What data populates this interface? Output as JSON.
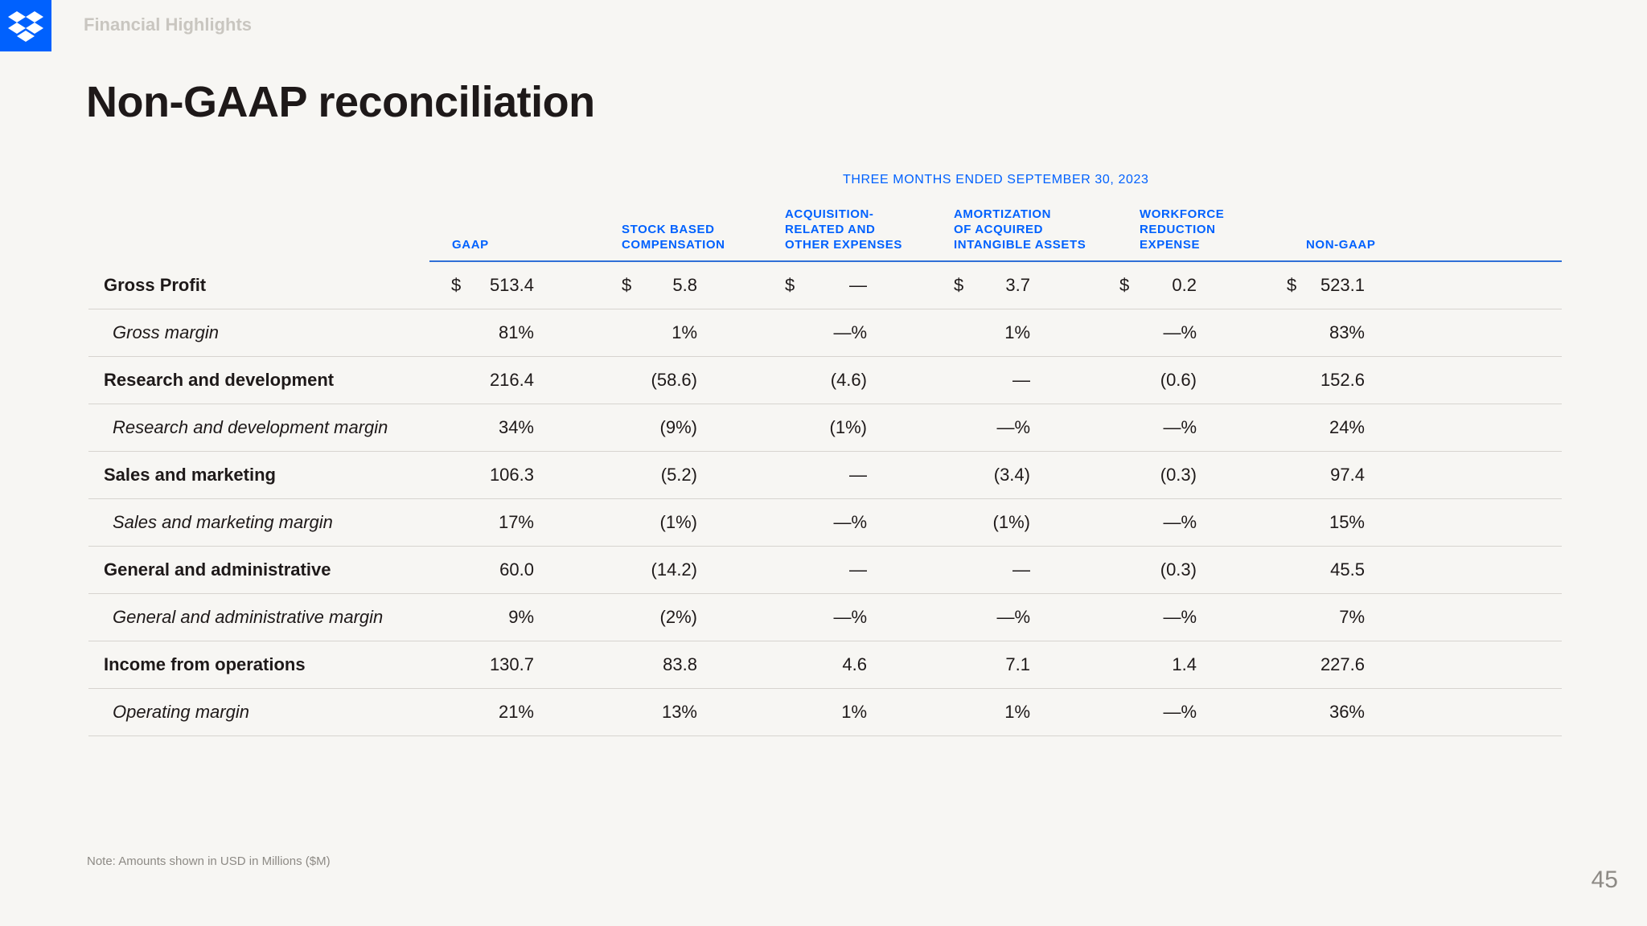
{
  "header": {
    "section": "Financial Highlights",
    "title": "Non-GAAP reconciliation",
    "logo_icon": "dropbox-logo-icon",
    "brand_color": "#0061fe"
  },
  "table": {
    "period": "THREE MONTHS ENDED SEPTEMBER 30, 2023",
    "columns": [
      "GAAP",
      "STOCK BASED\nCOMPENSATION",
      "ACQUISITION-\nRELATED AND\nOTHER EXPENSES",
      "AMORTIZATION\nOF ACQUIRED\nINTANGIBLE ASSETS",
      "WORKFORCE\nREDUCTION\nEXPENSE",
      "NON-GAAP"
    ],
    "currency": "$",
    "rows": [
      {
        "label": "Gross Profit",
        "style": "bold",
        "dollar": true,
        "values": [
          "513.4",
          "5.8",
          "—",
          "3.7",
          "0.2",
          "523.1"
        ]
      },
      {
        "label": "Gross margin",
        "style": "italic",
        "dollar": false,
        "values": [
          "81%",
          "1%",
          "—%",
          "1%",
          "—%",
          "83%"
        ]
      },
      {
        "label": "Research and development",
        "style": "bold",
        "dollar": false,
        "values": [
          "216.4",
          "(58.6)",
          "(4.6)",
          "—",
          "(0.6)",
          "152.6"
        ]
      },
      {
        "label": "Research and development margin",
        "style": "italic",
        "dollar": false,
        "values": [
          "34%",
          "(9%)",
          "(1%)",
          "—%",
          "—%",
          "24%"
        ]
      },
      {
        "label": "Sales and marketing",
        "style": "bold",
        "dollar": false,
        "values": [
          "106.3",
          "(5.2)",
          "—",
          "(3.4)",
          "(0.3)",
          "97.4"
        ]
      },
      {
        "label": "Sales and marketing margin",
        "style": "italic",
        "dollar": false,
        "values": [
          "17%",
          "(1%)",
          "—%",
          "(1%)",
          "—%",
          "15%"
        ]
      },
      {
        "label": "General and administrative",
        "style": "bold",
        "dollar": false,
        "values": [
          "60.0",
          "(14.2)",
          "—",
          "—",
          "(0.3)",
          "45.5"
        ]
      },
      {
        "label": "General and administrative margin",
        "style": "italic",
        "dollar": false,
        "values": [
          "9%",
          "(2%)",
          "—%",
          "—%",
          "—%",
          "7%"
        ]
      },
      {
        "label": "Income from operations",
        "style": "bold",
        "dollar": false,
        "values": [
          "130.7",
          "83.8",
          "4.6",
          "7.1",
          "1.4",
          "227.6"
        ]
      },
      {
        "label": "Operating margin",
        "style": "italic",
        "dollar": false,
        "values": [
          "21%",
          "13%",
          "1%",
          "1%",
          "—%",
          "36%"
        ]
      }
    ]
  },
  "footer": {
    "note": "Note: Amounts shown in USD in Millions ($M)",
    "page_number": "45"
  }
}
